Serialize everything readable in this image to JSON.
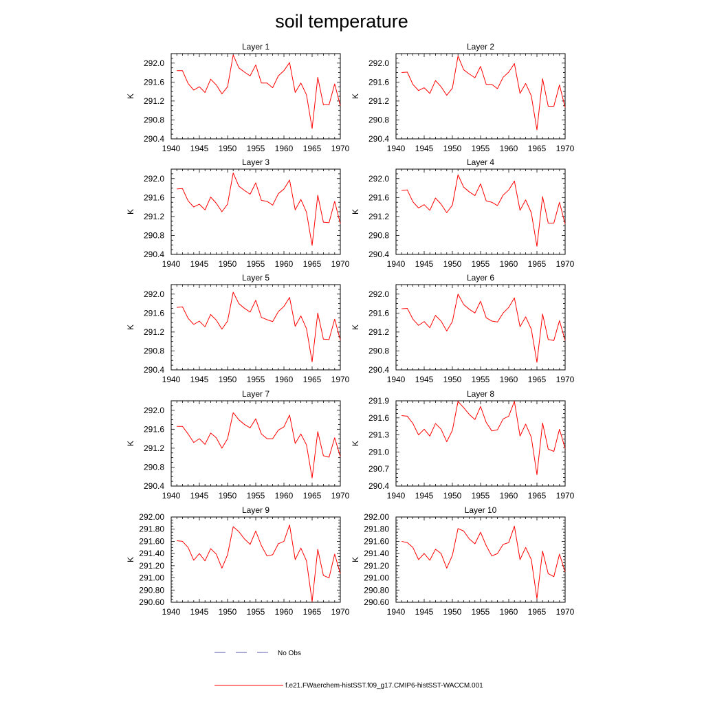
{
  "figure": {
    "title": "soil temperature",
    "legend": [
      {
        "label": "No Obs",
        "color": "#5555aa",
        "style": "dashed"
      },
      {
        "label": "f.e21.FWaerchem-histSST.f09_g17.CMIP6-histSST-WACCM.001",
        "color": "#ff0000",
        "style": "solid"
      }
    ]
  },
  "chart_data": [
    {
      "type": "line",
      "title": "Layer 1",
      "ylabel": "K",
      "xlim": [
        1940,
        1970
      ],
      "ylim": [
        290.4,
        292.2
      ],
      "x_ticks": [
        "1940",
        "1945",
        "1950",
        "1955",
        "1960",
        "1965",
        "1970"
      ],
      "y_ticks": [
        "290.4",
        "290.8",
        "291.2",
        "291.6",
        "292.0"
      ],
      "series": [
        {
          "color": "#ff0000",
          "x": [
            1941,
            1942,
            1943,
            1944,
            1945,
            1946,
            1947,
            1948,
            1949,
            1950,
            1951,
            1952,
            1953,
            1954,
            1955,
            1956,
            1957,
            1958,
            1959,
            1960,
            1961,
            1962,
            1963,
            1964,
            1965,
            1966,
            1967,
            1968,
            1969,
            1970
          ],
          "values": [
            291.84,
            291.84,
            291.57,
            291.43,
            291.5,
            291.38,
            291.66,
            291.54,
            291.35,
            291.5,
            292.17,
            291.9,
            291.81,
            291.73,
            291.96,
            291.58,
            291.58,
            291.48,
            291.73,
            291.84,
            292.01,
            291.38,
            291.58,
            291.33,
            290.62,
            291.7,
            291.12,
            291.12,
            291.56,
            291.1
          ]
        }
      ]
    },
    {
      "type": "line",
      "title": "Layer 2",
      "ylabel": "K",
      "xlim": [
        1940,
        1970
      ],
      "ylim": [
        290.4,
        292.2
      ],
      "x_ticks": [
        "1940",
        "1945",
        "1950",
        "1955",
        "1960",
        "1965",
        "1970"
      ],
      "y_ticks": [
        "290.4",
        "290.8",
        "291.2",
        "291.6",
        "292.0"
      ],
      "series": [
        {
          "color": "#ff0000",
          "x": [
            1941,
            1942,
            1943,
            1944,
            1945,
            1946,
            1947,
            1948,
            1949,
            1950,
            1951,
            1952,
            1953,
            1954,
            1955,
            1956,
            1957,
            1958,
            1959,
            1960,
            1961,
            1962,
            1963,
            1964,
            1965,
            1966,
            1967,
            1968,
            1969,
            1970
          ],
          "values": [
            291.8,
            291.81,
            291.55,
            291.42,
            291.48,
            291.36,
            291.63,
            291.5,
            291.32,
            291.47,
            292.15,
            291.86,
            291.77,
            291.69,
            291.93,
            291.55,
            291.55,
            291.46,
            291.7,
            291.81,
            291.99,
            291.36,
            291.57,
            291.31,
            290.59,
            291.67,
            291.09,
            291.09,
            291.54,
            291.06
          ]
        }
      ]
    },
    {
      "type": "line",
      "title": "Layer 3",
      "ylabel": "K",
      "xlim": [
        1940,
        1970
      ],
      "ylim": [
        290.4,
        292.2
      ],
      "x_ticks": [
        "1940",
        "1945",
        "1950",
        "1955",
        "1960",
        "1965",
        "1970"
      ],
      "y_ticks": [
        "290.4",
        "290.8",
        "291.2",
        "291.6",
        "292.0"
      ],
      "series": [
        {
          "color": "#ff0000",
          "x": [
            1941,
            1942,
            1943,
            1944,
            1945,
            1946,
            1947,
            1948,
            1949,
            1950,
            1951,
            1952,
            1953,
            1954,
            1955,
            1956,
            1957,
            1958,
            1959,
            1960,
            1961,
            1962,
            1963,
            1964,
            1965,
            1966,
            1967,
            1968,
            1969,
            1970
          ],
          "values": [
            291.78,
            291.79,
            291.53,
            291.4,
            291.46,
            291.34,
            291.61,
            291.48,
            291.3,
            291.46,
            292.12,
            291.84,
            291.75,
            291.67,
            291.91,
            291.54,
            291.52,
            291.44,
            291.68,
            291.78,
            291.97,
            291.34,
            291.56,
            291.29,
            290.59,
            291.65,
            291.08,
            291.07,
            291.52,
            291.05
          ]
        }
      ]
    },
    {
      "type": "line",
      "title": "Layer 4",
      "ylabel": "K",
      "xlim": [
        1940,
        1970
      ],
      "ylim": [
        290.4,
        292.2
      ],
      "x_ticks": [
        "1940",
        "1945",
        "1950",
        "1955",
        "1960",
        "1965",
        "1970"
      ],
      "y_ticks": [
        "290.4",
        "290.8",
        "291.2",
        "291.6",
        "292.0"
      ],
      "series": [
        {
          "color": "#ff0000",
          "x": [
            1941,
            1942,
            1943,
            1944,
            1945,
            1946,
            1947,
            1948,
            1949,
            1950,
            1951,
            1952,
            1953,
            1954,
            1955,
            1956,
            1957,
            1958,
            1959,
            1960,
            1961,
            1962,
            1963,
            1964,
            1965,
            1966,
            1967,
            1968,
            1969,
            1970
          ],
          "values": [
            291.75,
            291.76,
            291.51,
            291.38,
            291.45,
            291.33,
            291.59,
            291.46,
            291.28,
            291.44,
            292.08,
            291.82,
            291.72,
            291.64,
            291.89,
            291.53,
            291.5,
            291.43,
            291.65,
            291.76,
            291.95,
            291.33,
            291.55,
            291.28,
            290.57,
            291.62,
            291.06,
            291.06,
            291.5,
            291.04
          ]
        }
      ]
    },
    {
      "type": "line",
      "title": "Layer 5",
      "ylabel": "K",
      "xlim": [
        1940,
        1970
      ],
      "ylim": [
        290.4,
        292.2
      ],
      "x_ticks": [
        "1940",
        "1945",
        "1950",
        "1955",
        "1960",
        "1965",
        "1970"
      ],
      "y_ticks": [
        "290.4",
        "290.8",
        "291.2",
        "291.6",
        "292.0"
      ],
      "series": [
        {
          "color": "#ff0000",
          "x": [
            1941,
            1942,
            1943,
            1944,
            1945,
            1946,
            1947,
            1948,
            1949,
            1950,
            1951,
            1952,
            1953,
            1954,
            1955,
            1956,
            1957,
            1958,
            1959,
            1960,
            1961,
            1962,
            1963,
            1964,
            1965,
            1966,
            1967,
            1968,
            1969,
            1970
          ],
          "values": [
            291.72,
            291.73,
            291.49,
            291.36,
            291.43,
            291.31,
            291.57,
            291.45,
            291.26,
            291.43,
            292.04,
            291.8,
            291.7,
            291.62,
            291.87,
            291.51,
            291.46,
            291.42,
            291.63,
            291.74,
            291.93,
            291.32,
            291.54,
            291.27,
            290.57,
            291.6,
            291.05,
            291.04,
            291.47,
            291.03
          ]
        }
      ]
    },
    {
      "type": "line",
      "title": "Layer 6",
      "ylabel": "K",
      "xlim": [
        1940,
        1970
      ],
      "ylim": [
        290.4,
        292.2
      ],
      "x_ticks": [
        "1940",
        "1945",
        "1950",
        "1955",
        "1960",
        "1965",
        "1970"
      ],
      "y_ticks": [
        "290.4",
        "290.8",
        "291.2",
        "291.6",
        "292.0"
      ],
      "series": [
        {
          "color": "#ff0000",
          "x": [
            1941,
            1942,
            1943,
            1944,
            1945,
            1946,
            1947,
            1948,
            1949,
            1950,
            1951,
            1952,
            1953,
            1954,
            1955,
            1956,
            1957,
            1958,
            1959,
            1960,
            1961,
            1962,
            1963,
            1964,
            1965,
            1966,
            1967,
            1968,
            1969,
            1970
          ],
          "values": [
            291.69,
            291.7,
            291.47,
            291.34,
            291.42,
            291.29,
            291.55,
            291.43,
            291.22,
            291.42,
            292.0,
            291.78,
            291.68,
            291.6,
            291.85,
            291.5,
            291.43,
            291.41,
            291.6,
            291.72,
            291.92,
            291.31,
            291.52,
            291.26,
            290.56,
            291.58,
            291.04,
            291.02,
            291.44,
            291.02
          ]
        }
      ]
    },
    {
      "type": "line",
      "title": "Layer 7",
      "ylabel": "K",
      "xlim": [
        1940,
        1970
      ],
      "ylim": [
        290.4,
        292.2
      ],
      "x_ticks": [
        "1940",
        "1945",
        "1950",
        "1955",
        "1960",
        "1965",
        "1970"
      ],
      "y_ticks": [
        "290.4",
        "290.8",
        "291.2",
        "291.6",
        "292.0"
      ],
      "series": [
        {
          "color": "#ff0000",
          "x": [
            1941,
            1942,
            1943,
            1944,
            1945,
            1946,
            1947,
            1948,
            1949,
            1950,
            1951,
            1952,
            1953,
            1954,
            1955,
            1956,
            1957,
            1958,
            1959,
            1960,
            1961,
            1962,
            1963,
            1964,
            1965,
            1966,
            1967,
            1968,
            1969,
            1970
          ],
          "values": [
            291.66,
            291.66,
            291.5,
            291.32,
            291.4,
            291.28,
            291.52,
            291.42,
            291.2,
            291.4,
            291.95,
            291.8,
            291.7,
            291.63,
            291.82,
            291.5,
            291.4,
            291.4,
            291.58,
            291.65,
            291.9,
            291.3,
            291.5,
            291.27,
            290.57,
            291.55,
            291.04,
            291.01,
            291.42,
            291.02
          ]
        }
      ]
    },
    {
      "type": "line",
      "title": "Layer 8",
      "ylabel": "K",
      "xlim": [
        1940,
        1970
      ],
      "ylim": [
        290.4,
        291.9
      ],
      "x_ticks": [
        "1940",
        "1945",
        "1950",
        "1955",
        "1960",
        "1965",
        "1970"
      ],
      "y_ticks": [
        "290.4",
        "290.7",
        "291.0",
        "291.3",
        "291.6",
        "291.9"
      ],
      "series": [
        {
          "color": "#ff0000",
          "x": [
            1941,
            1942,
            1943,
            1944,
            1945,
            1946,
            1947,
            1948,
            1949,
            1950,
            1951,
            1952,
            1953,
            1954,
            1955,
            1956,
            1957,
            1958,
            1959,
            1960,
            1961,
            1962,
            1963,
            1964,
            1965,
            1966,
            1967,
            1968,
            1969,
            1970
          ],
          "values": [
            291.64,
            291.63,
            291.5,
            291.3,
            291.4,
            291.28,
            291.5,
            291.4,
            291.18,
            291.38,
            291.89,
            291.78,
            291.66,
            291.57,
            291.8,
            291.52,
            291.37,
            291.39,
            291.58,
            291.63,
            291.89,
            291.28,
            291.49,
            291.26,
            290.6,
            291.51,
            291.05,
            291.01,
            291.4,
            291.06
          ]
        }
      ]
    },
    {
      "type": "line",
      "title": "Layer 9",
      "ylabel": "K",
      "xlim": [
        1940,
        1970
      ],
      "ylim": [
        290.6,
        292.0
      ],
      "x_ticks": [
        "1940",
        "1945",
        "1950",
        "1955",
        "1960",
        "1965",
        "1970"
      ],
      "y_ticks": [
        "290.60",
        "290.80",
        "291.00",
        "291.20",
        "291.40",
        "291.60",
        "291.80",
        "292.00"
      ],
      "series": [
        {
          "color": "#ff0000",
          "x": [
            1941,
            1942,
            1943,
            1944,
            1945,
            1946,
            1947,
            1948,
            1949,
            1950,
            1951,
            1952,
            1953,
            1954,
            1955,
            1956,
            1957,
            1958,
            1959,
            1960,
            1961,
            1962,
            1963,
            1964,
            1965,
            1966,
            1967,
            1968,
            1969,
            1970
          ],
          "values": [
            291.61,
            291.6,
            291.5,
            291.29,
            291.4,
            291.28,
            291.48,
            291.39,
            291.16,
            291.38,
            291.84,
            291.76,
            291.64,
            291.55,
            291.77,
            291.53,
            291.36,
            291.38,
            291.56,
            291.6,
            291.87,
            291.3,
            291.49,
            291.28,
            290.61,
            291.47,
            291.04,
            291.0,
            291.39,
            291.07
          ]
        }
      ]
    },
    {
      "type": "line",
      "title": "Layer 10",
      "ylabel": "K",
      "xlim": [
        1940,
        1970
      ],
      "ylim": [
        290.6,
        292.0
      ],
      "x_ticks": [
        "1940",
        "1945",
        "1950",
        "1955",
        "1960",
        "1965",
        "1970"
      ],
      "y_ticks": [
        "290.60",
        "290.80",
        "291.00",
        "291.20",
        "291.40",
        "291.60",
        "291.80",
        "292.00"
      ],
      "series": [
        {
          "color": "#ff0000",
          "x": [
            1941,
            1942,
            1943,
            1944,
            1945,
            1946,
            1947,
            1948,
            1949,
            1950,
            1951,
            1952,
            1953,
            1954,
            1955,
            1956,
            1957,
            1958,
            1959,
            1960,
            1961,
            1962,
            1963,
            1964,
            1965,
            1966,
            1967,
            1968,
            1969,
            1970
          ],
          "values": [
            291.6,
            291.58,
            291.5,
            291.3,
            291.4,
            291.29,
            291.47,
            291.4,
            291.16,
            291.37,
            291.81,
            291.77,
            291.64,
            291.56,
            291.75,
            291.53,
            291.36,
            291.4,
            291.55,
            291.58,
            291.85,
            291.3,
            291.5,
            291.3,
            290.66,
            291.44,
            291.07,
            291.02,
            291.39,
            291.1
          ]
        }
      ]
    }
  ]
}
